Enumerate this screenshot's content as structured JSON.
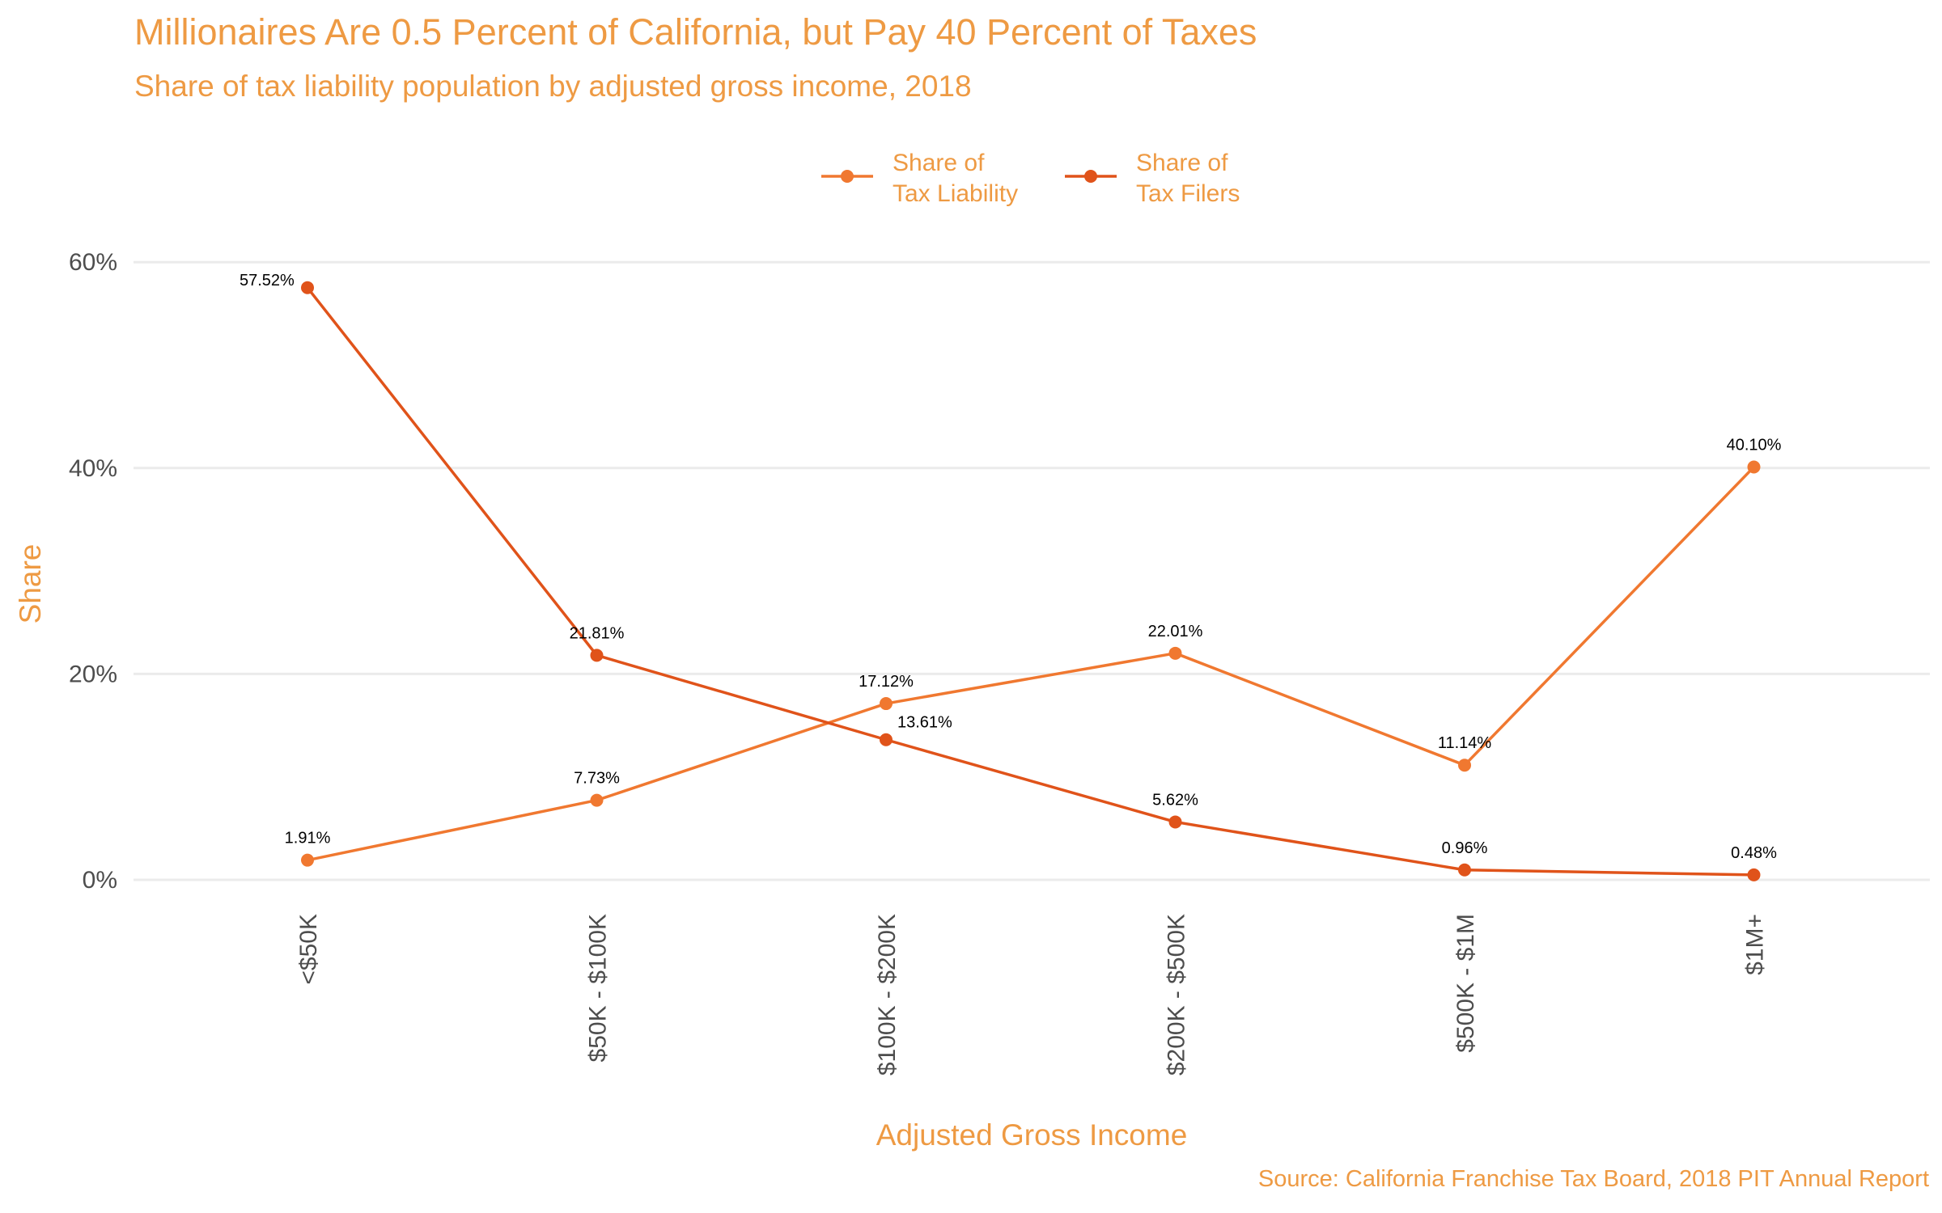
{
  "colors": {
    "text_accent": "#EE9A43",
    "liability": "#F07830",
    "filers": "#E0531A",
    "grid": "#EBEBEB"
  },
  "chart_data": {
    "type": "line",
    "title": "Millionaires Are 0.5 Percent of California, but Pay 40 Percent of Taxes",
    "subtitle": "Share of tax liability population by adjusted gross income, 2018",
    "xlabel": "Adjusted Gross Income",
    "ylabel": "Share",
    "caption": "Source: California Franchise Tax Board, 2018 PIT Annual Report",
    "categories": [
      "<$50K",
      "$50K - $100K",
      "$100K - $200K",
      "$200K - $500K",
      "$500K - $1M",
      "$1M+"
    ],
    "ylim": [
      0,
      60
    ],
    "yticks": [
      0,
      20,
      40,
      60
    ],
    "ytick_labels": [
      "0%",
      "20%",
      "40%",
      "60%"
    ],
    "grid": true,
    "legend_position": "top",
    "series": [
      {
        "key": "liability",
        "name": "Share of\nTax Liability",
        "name_lines": [
          "Share of",
          "Tax Liability"
        ],
        "values": [
          1.91,
          7.73,
          17.12,
          22.01,
          11.14,
          40.1
        ],
        "labels": [
          "1.91%",
          "7.73%",
          "17.12%",
          "22.01%",
          "11.14%",
          "40.10%"
        ]
      },
      {
        "key": "filers",
        "name": "Share of\nTax Filers",
        "name_lines": [
          "Share of",
          "Tax Filers"
        ],
        "values": [
          57.52,
          21.81,
          13.61,
          5.62,
          0.96,
          0.48
        ],
        "labels": [
          "57.52%",
          "21.81%",
          "13.61%",
          "5.62%",
          "0.96%",
          "0.48%"
        ]
      }
    ]
  }
}
